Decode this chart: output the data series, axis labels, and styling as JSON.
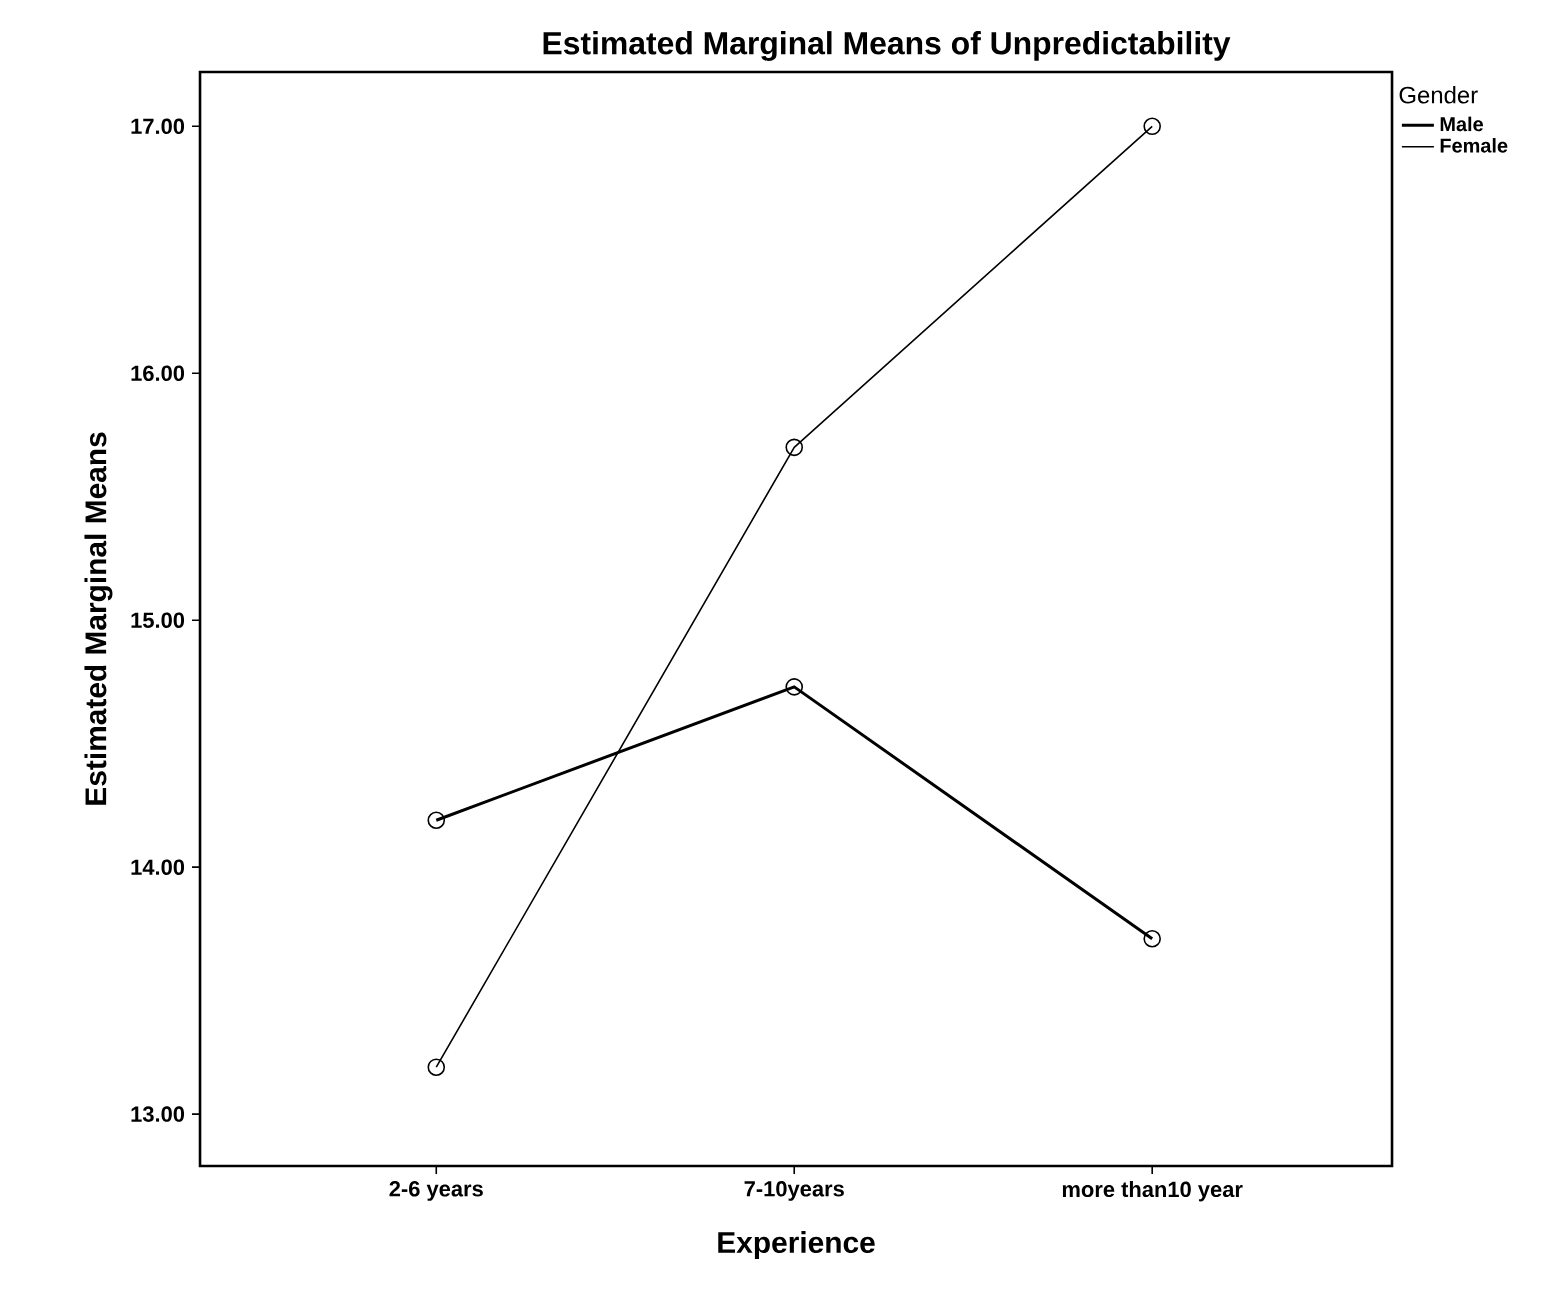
{
  "chart_data": {
    "type": "line",
    "title": "Estimated Marginal Means of Unpredictability",
    "xlabel": "Experience",
    "ylabel": "Estimated Marginal Means",
    "legend_title": "Gender",
    "categories": [
      "2-6 years",
      "7-10years",
      "more than10 year"
    ],
    "series": [
      {
        "name": "Male",
        "color": "#000000",
        "values": [
          14.19,
          14.73,
          13.71
        ]
      },
      {
        "name": "Female",
        "color": "#000000",
        "values": [
          13.19,
          15.7,
          17.0
        ]
      }
    ],
    "ylim": [
      12.79,
      17.22
    ],
    "yticks": [
      {
        "value": 13,
        "label": "13.00"
      },
      {
        "value": 14,
        "label": "14.00"
      },
      {
        "value": 15,
        "label": "15.00"
      },
      {
        "value": 16,
        "label": "16.00"
      },
      {
        "value": 17,
        "label": "17.00"
      }
    ],
    "grid": false,
    "legend": "top right",
    "marker": "circle",
    "line_style": "solid"
  }
}
